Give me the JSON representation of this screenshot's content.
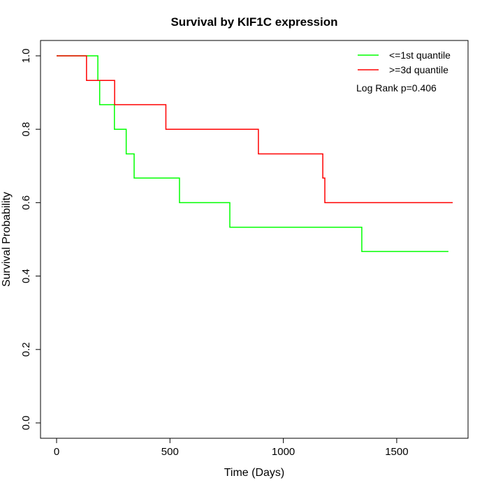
{
  "chart_data": {
    "type": "line",
    "subtype": "kaplan-meier step",
    "title": "Survival by KIF1C expression",
    "xlabel": "Time (Days)",
    "ylabel": "Survival Probability",
    "xlim": [
      0,
      1750
    ],
    "ylim": [
      0,
      1
    ],
    "xticks": [
      "0",
      "500",
      "1000",
      "1500"
    ],
    "xtick_values": [
      0,
      500,
      1000,
      1500
    ],
    "yticks": [
      "0.0",
      "0.2",
      "0.4",
      "0.6",
      "0.8",
      "1.0"
    ],
    "ytick_values": [
      0,
      0.2,
      0.4,
      0.6,
      0.8,
      1.0
    ],
    "grid": false,
    "legend_position": "top-right",
    "annotation": "Log Rank p=0.406",
    "series": [
      {
        "name": "<=1st quantile",
        "color": "#00ff00",
        "x": [
          0,
          182,
          190,
          255,
          307,
          342,
          542,
          764,
          1346,
          1728
        ],
        "y": [
          1.0,
          0.933,
          0.867,
          0.8,
          0.733,
          0.667,
          0.6,
          0.533,
          0.467,
          0.467
        ]
      },
      {
        "name": ">=3d quantile",
        "color": "#ff0000",
        "x": [
          0,
          132,
          256,
          482,
          890,
          1174,
          1183,
          1747
        ],
        "y": [
          1.0,
          0.933,
          0.867,
          0.8,
          0.733,
          0.667,
          0.6,
          0.6
        ]
      }
    ]
  }
}
